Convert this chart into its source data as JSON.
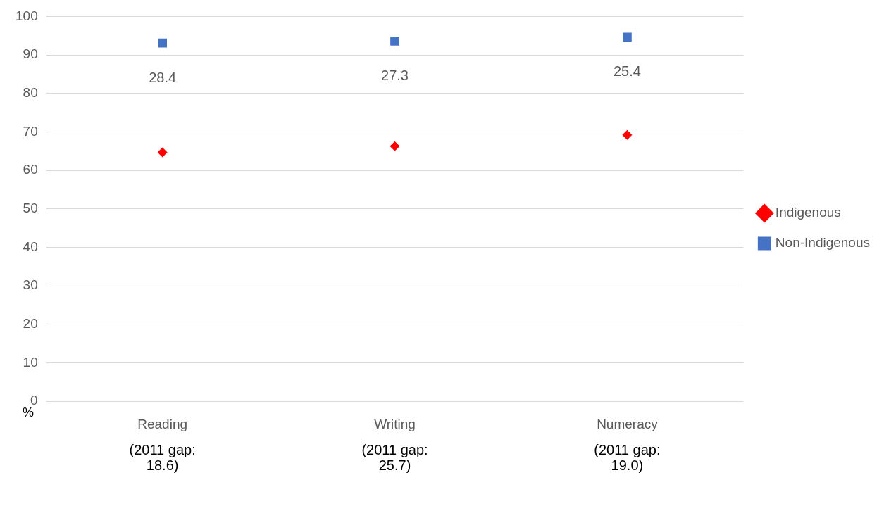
{
  "chart_data": {
    "type": "scatter",
    "ylabel": "%",
    "categories": [
      "Reading",
      "Writing",
      "Numeracy"
    ],
    "series": [
      {
        "name": "Indigenous",
        "color": "#ff0000",
        "marker": "diamond",
        "values": [
          64.7,
          66.3,
          69.2
        ]
      },
      {
        "name": "Non-Indigenous",
        "color": "#4472c4",
        "marker": "square",
        "values": [
          93.1,
          93.6,
          94.6
        ]
      }
    ],
    "ylim": [
      0,
      100
    ],
    "yticks": [
      0,
      10,
      20,
      30,
      40,
      50,
      60,
      70,
      80,
      90,
      100
    ],
    "grid": "y",
    "legend": "right",
    "annotations": [
      "28.4",
      "27.3",
      "25.4",
      "(2011 gap:\n18.6)",
      "(2011 gap:\n25.7)",
      "(2011 gap:\n19.0)"
    ]
  }
}
